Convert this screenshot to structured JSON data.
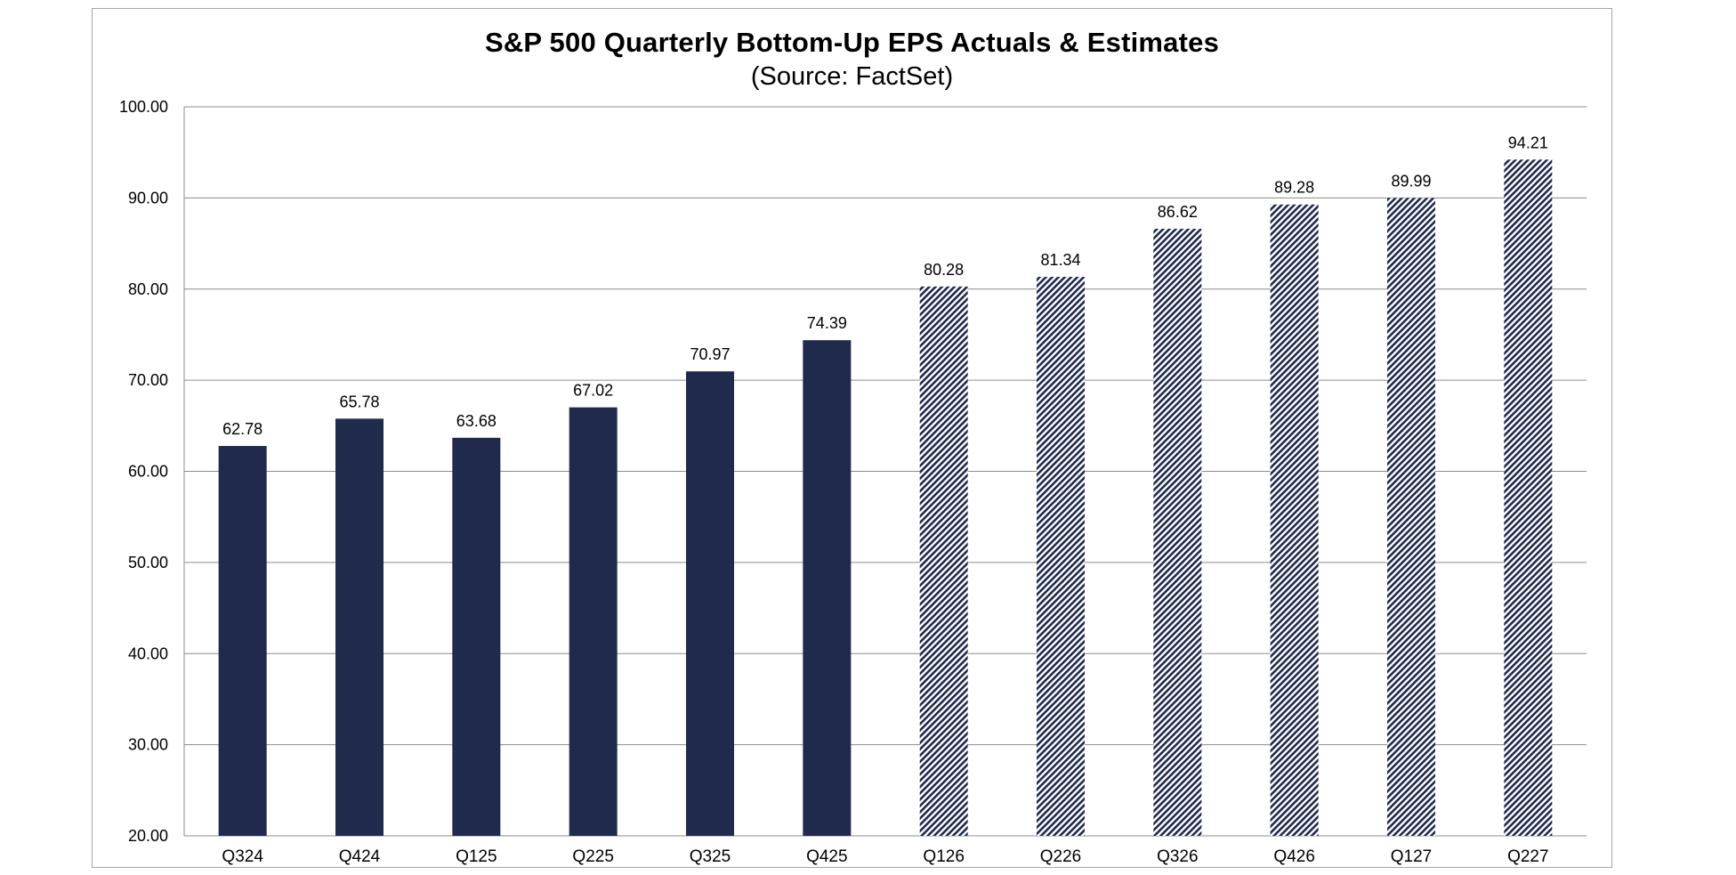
{
  "chart_data": {
    "type": "bar",
    "title": "S&P 500 Quarterly  Bottom-Up  EPS  Actuals  &  Estimates",
    "subtitle": "(Source:  FactSet)",
    "xlabel": "",
    "ylabel": "",
    "ylim": [
      20,
      100
    ],
    "yticks": [
      "20.00",
      "30.00",
      "40.00",
      "50.00",
      "60.00",
      "70.00",
      "80.00",
      "90.00",
      "100.00"
    ],
    "ytick_values": [
      20,
      30,
      40,
      50,
      60,
      70,
      80,
      90,
      100
    ],
    "grid": true,
    "legend": "none",
    "categories": [
      "Q324",
      "Q424",
      "Q125",
      "Q225",
      "Q325",
      "Q425",
      "Q126",
      "Q226",
      "Q326",
      "Q426",
      "Q127",
      "Q227"
    ],
    "values": [
      62.78,
      65.78,
      63.68,
      67.02,
      70.97,
      74.39,
      80.28,
      81.34,
      86.62,
      89.28,
      89.99,
      94.21
    ],
    "data_labels": [
      "62.78",
      "65.78",
      "63.68",
      "67.02",
      "70.97",
      "74.39",
      "80.28",
      "81.34",
      "86.62",
      "89.28",
      "89.99",
      "94.21"
    ],
    "kind": [
      "actual",
      "actual",
      "actual",
      "actual",
      "actual",
      "actual",
      "estimate",
      "estimate",
      "estimate",
      "estimate",
      "estimate",
      "estimate"
    ],
    "colors": {
      "actual": "#1f2a4d",
      "estimate_stripe": "#1f2a4d",
      "estimate_bg": "#ffffff",
      "grid": "#8c8c8c"
    }
  }
}
